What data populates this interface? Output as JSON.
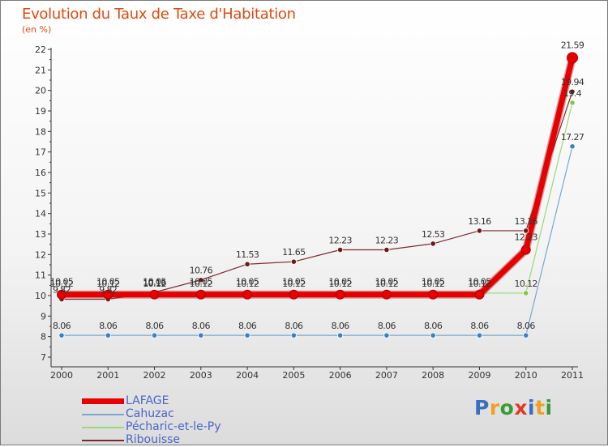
{
  "header": {
    "title": "Evolution du Taux de Taxe d'Habitation",
    "subtitle": "(en %)"
  },
  "logo": {
    "text": "Proxiti"
  },
  "chart_data": {
    "type": "line",
    "title": "Evolution du Taux de Taxe d'Habitation",
    "ylabel": "(en %)",
    "xlabel": "",
    "grid": false,
    "legend": "bottom-left",
    "ylim": [
      7,
      22
    ],
    "yticks": [
      "7",
      "8",
      "9",
      "10",
      "11",
      "12",
      "13",
      "14",
      "15",
      "16",
      "17",
      "18",
      "19",
      "20",
      "21",
      "22"
    ],
    "categories": [
      "2000",
      "2001",
      "2002",
      "2003",
      "2004",
      "2005",
      "2006",
      "2007",
      "2008",
      "2009",
      "2010",
      "2011"
    ],
    "series": [
      {
        "name": "Ribouisse",
        "color": "#7a2a2a",
        "point_color": "#6b1a1a",
        "values": [
          9.82,
          9.82,
          10.16,
          10.76,
          11.53,
          11.65,
          12.23,
          12.23,
          12.53,
          13.16,
          13.16,
          19.94
        ],
        "labels": [
          "9.82",
          "9.82",
          "10.16",
          "10.76",
          "11.53",
          "11.65",
          "12.23",
          "12.23",
          "12.53",
          "13.16",
          "13.16",
          "19.94"
        ]
      },
      {
        "name": "Cahuzac",
        "color": "#78a8d0",
        "point_color": "#3a80c4",
        "values": [
          8.06,
          8.06,
          8.06,
          8.06,
          8.06,
          8.06,
          8.06,
          8.06,
          8.06,
          8.06,
          8.06,
          17.27
        ],
        "labels": [
          "8.06",
          "8.06",
          "8.06",
          "8.06",
          "8.06",
          "8.06",
          "8.06",
          "8.06",
          "8.06",
          "8.06",
          "8.06",
          "17.27"
        ]
      },
      {
        "name": "Pécharic-et-le-Py",
        "color": "#9ad87a",
        "point_color": "#7ec84a",
        "values": [
          10.12,
          10.12,
          10.12,
          10.12,
          10.12,
          10.12,
          10.12,
          10.12,
          10.12,
          10.12,
          10.12,
          19.4
        ],
        "labels": [
          "10.12",
          "10.12",
          "10.12",
          "10.12",
          "10.12",
          "10.12",
          "10.12",
          "10.12",
          "10.12",
          "10.12",
          "10.12",
          "19.4"
        ]
      },
      {
        "name": "LAFAGE",
        "color": "#e80000",
        "point_color": "#e80000",
        "values": [
          10.05,
          10.05,
          10.05,
          10.05,
          10.05,
          10.05,
          10.05,
          10.05,
          10.05,
          10.05,
          12.23,
          21.59
        ],
        "labels": [
          "10.05",
          "10.05",
          "10.05",
          "10.05",
          "10.05",
          "10.05",
          "10.05",
          "10.05",
          "10.05",
          "10.05",
          "12.23",
          "21.59"
        ]
      }
    ]
  },
  "legend": [
    {
      "label": "LAFAGE",
      "color": "#e80000"
    },
    {
      "label": "Cahuzac",
      "color": "#78a8d0"
    },
    {
      "label": "Pécharic-et-le-Py",
      "color": "#9ad87a"
    },
    {
      "label": "Ribouisse",
      "color": "#7a2a2a"
    }
  ]
}
